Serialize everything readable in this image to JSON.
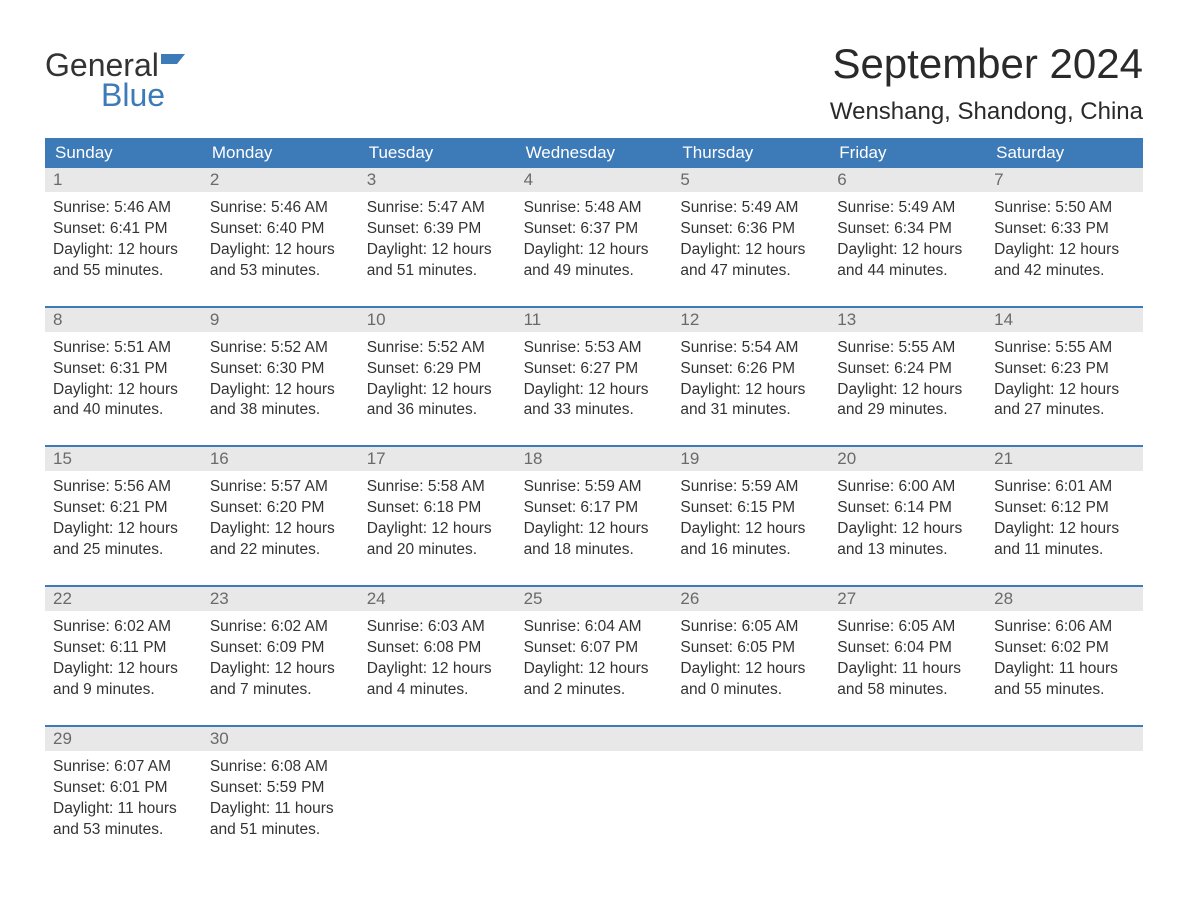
{
  "brand": {
    "line1": "General",
    "line2": "Blue"
  },
  "title": "September 2024",
  "location": "Wenshang, Shandong, China",
  "colors": {
    "header_bg": "#3d7ab8",
    "header_text": "#ffffff",
    "daynum_bg": "#e8e8e8",
    "daynum_text": "#6a6a6a",
    "body_text": "#333333",
    "week_border": "#3d7ab8"
  },
  "dow": [
    "Sunday",
    "Monday",
    "Tuesday",
    "Wednesday",
    "Thursday",
    "Friday",
    "Saturday"
  ],
  "weeks": [
    {
      "days": [
        {
          "n": "1",
          "sunrise": "Sunrise: 5:46 AM",
          "sunset": "Sunset: 6:41 PM",
          "dl1": "Daylight: 12 hours",
          "dl2": "and 55 minutes."
        },
        {
          "n": "2",
          "sunrise": "Sunrise: 5:46 AM",
          "sunset": "Sunset: 6:40 PM",
          "dl1": "Daylight: 12 hours",
          "dl2": "and 53 minutes."
        },
        {
          "n": "3",
          "sunrise": "Sunrise: 5:47 AM",
          "sunset": "Sunset: 6:39 PM",
          "dl1": "Daylight: 12 hours",
          "dl2": "and 51 minutes."
        },
        {
          "n": "4",
          "sunrise": "Sunrise: 5:48 AM",
          "sunset": "Sunset: 6:37 PM",
          "dl1": "Daylight: 12 hours",
          "dl2": "and 49 minutes."
        },
        {
          "n": "5",
          "sunrise": "Sunrise: 5:49 AM",
          "sunset": "Sunset: 6:36 PM",
          "dl1": "Daylight: 12 hours",
          "dl2": "and 47 minutes."
        },
        {
          "n": "6",
          "sunrise": "Sunrise: 5:49 AM",
          "sunset": "Sunset: 6:34 PM",
          "dl1": "Daylight: 12 hours",
          "dl2": "and 44 minutes."
        },
        {
          "n": "7",
          "sunrise": "Sunrise: 5:50 AM",
          "sunset": "Sunset: 6:33 PM",
          "dl1": "Daylight: 12 hours",
          "dl2": "and 42 minutes."
        }
      ]
    },
    {
      "days": [
        {
          "n": "8",
          "sunrise": "Sunrise: 5:51 AM",
          "sunset": "Sunset: 6:31 PM",
          "dl1": "Daylight: 12 hours",
          "dl2": "and 40 minutes."
        },
        {
          "n": "9",
          "sunrise": "Sunrise: 5:52 AM",
          "sunset": "Sunset: 6:30 PM",
          "dl1": "Daylight: 12 hours",
          "dl2": "and 38 minutes."
        },
        {
          "n": "10",
          "sunrise": "Sunrise: 5:52 AM",
          "sunset": "Sunset: 6:29 PM",
          "dl1": "Daylight: 12 hours",
          "dl2": "and 36 minutes."
        },
        {
          "n": "11",
          "sunrise": "Sunrise: 5:53 AM",
          "sunset": "Sunset: 6:27 PM",
          "dl1": "Daylight: 12 hours",
          "dl2": "and 33 minutes."
        },
        {
          "n": "12",
          "sunrise": "Sunrise: 5:54 AM",
          "sunset": "Sunset: 6:26 PM",
          "dl1": "Daylight: 12 hours",
          "dl2": "and 31 minutes."
        },
        {
          "n": "13",
          "sunrise": "Sunrise: 5:55 AM",
          "sunset": "Sunset: 6:24 PM",
          "dl1": "Daylight: 12 hours",
          "dl2": "and 29 minutes."
        },
        {
          "n": "14",
          "sunrise": "Sunrise: 5:55 AM",
          "sunset": "Sunset: 6:23 PM",
          "dl1": "Daylight: 12 hours",
          "dl2": "and 27 minutes."
        }
      ]
    },
    {
      "days": [
        {
          "n": "15",
          "sunrise": "Sunrise: 5:56 AM",
          "sunset": "Sunset: 6:21 PM",
          "dl1": "Daylight: 12 hours",
          "dl2": "and 25 minutes."
        },
        {
          "n": "16",
          "sunrise": "Sunrise: 5:57 AM",
          "sunset": "Sunset: 6:20 PM",
          "dl1": "Daylight: 12 hours",
          "dl2": "and 22 minutes."
        },
        {
          "n": "17",
          "sunrise": "Sunrise: 5:58 AM",
          "sunset": "Sunset: 6:18 PM",
          "dl1": "Daylight: 12 hours",
          "dl2": "and 20 minutes."
        },
        {
          "n": "18",
          "sunrise": "Sunrise: 5:59 AM",
          "sunset": "Sunset: 6:17 PM",
          "dl1": "Daylight: 12 hours",
          "dl2": "and 18 minutes."
        },
        {
          "n": "19",
          "sunrise": "Sunrise: 5:59 AM",
          "sunset": "Sunset: 6:15 PM",
          "dl1": "Daylight: 12 hours",
          "dl2": "and 16 minutes."
        },
        {
          "n": "20",
          "sunrise": "Sunrise: 6:00 AM",
          "sunset": "Sunset: 6:14 PM",
          "dl1": "Daylight: 12 hours",
          "dl2": "and 13 minutes."
        },
        {
          "n": "21",
          "sunrise": "Sunrise: 6:01 AM",
          "sunset": "Sunset: 6:12 PM",
          "dl1": "Daylight: 12 hours",
          "dl2": "and 11 minutes."
        }
      ]
    },
    {
      "days": [
        {
          "n": "22",
          "sunrise": "Sunrise: 6:02 AM",
          "sunset": "Sunset: 6:11 PM",
          "dl1": "Daylight: 12 hours",
          "dl2": "and 9 minutes."
        },
        {
          "n": "23",
          "sunrise": "Sunrise: 6:02 AM",
          "sunset": "Sunset: 6:09 PM",
          "dl1": "Daylight: 12 hours",
          "dl2": "and 7 minutes."
        },
        {
          "n": "24",
          "sunrise": "Sunrise: 6:03 AM",
          "sunset": "Sunset: 6:08 PM",
          "dl1": "Daylight: 12 hours",
          "dl2": "and 4 minutes."
        },
        {
          "n": "25",
          "sunrise": "Sunrise: 6:04 AM",
          "sunset": "Sunset: 6:07 PM",
          "dl1": "Daylight: 12 hours",
          "dl2": "and 2 minutes."
        },
        {
          "n": "26",
          "sunrise": "Sunrise: 6:05 AM",
          "sunset": "Sunset: 6:05 PM",
          "dl1": "Daylight: 12 hours",
          "dl2": "and 0 minutes."
        },
        {
          "n": "27",
          "sunrise": "Sunrise: 6:05 AM",
          "sunset": "Sunset: 6:04 PM",
          "dl1": "Daylight: 11 hours",
          "dl2": "and 58 minutes."
        },
        {
          "n": "28",
          "sunrise": "Sunrise: 6:06 AM",
          "sunset": "Sunset: 6:02 PM",
          "dl1": "Daylight: 11 hours",
          "dl2": "and 55 minutes."
        }
      ]
    },
    {
      "days": [
        {
          "n": "29",
          "sunrise": "Sunrise: 6:07 AM",
          "sunset": "Sunset: 6:01 PM",
          "dl1": "Daylight: 11 hours",
          "dl2": "and 53 minutes."
        },
        {
          "n": "30",
          "sunrise": "Sunrise: 6:08 AM",
          "sunset": "Sunset: 5:59 PM",
          "dl1": "Daylight: 11 hours",
          "dl2": "and 51 minutes."
        },
        {
          "n": "",
          "empty": true
        },
        {
          "n": "",
          "empty": true
        },
        {
          "n": "",
          "empty": true
        },
        {
          "n": "",
          "empty": true
        },
        {
          "n": "",
          "empty": true
        }
      ]
    }
  ]
}
